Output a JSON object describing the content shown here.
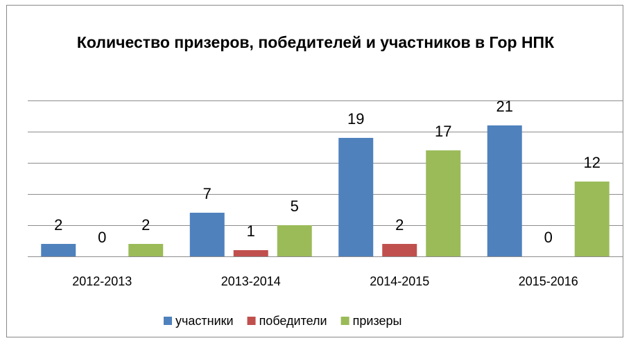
{
  "chart_data": {
    "type": "bar",
    "title": "Количество призеров, победителей и участников в Гор НПК",
    "categories": [
      "2012-2013",
      "2013-2014",
      "2014-2015",
      "2015-2016"
    ],
    "series": [
      {
        "name": "участники",
        "color": "#4f81bd",
        "values": [
          2,
          7,
          19,
          21
        ]
      },
      {
        "name": "победители",
        "color": "#c0504d",
        "values": [
          0,
          1,
          2,
          0
        ]
      },
      {
        "name": "призеры",
        "color": "#9bbb59",
        "values": [
          2,
          5,
          17,
          12
        ]
      }
    ],
    "ylim": [
      0,
      25
    ],
    "yticks": [
      0,
      5,
      10,
      15,
      20,
      25
    ],
    "grid": true,
    "legend": "bottom"
  }
}
